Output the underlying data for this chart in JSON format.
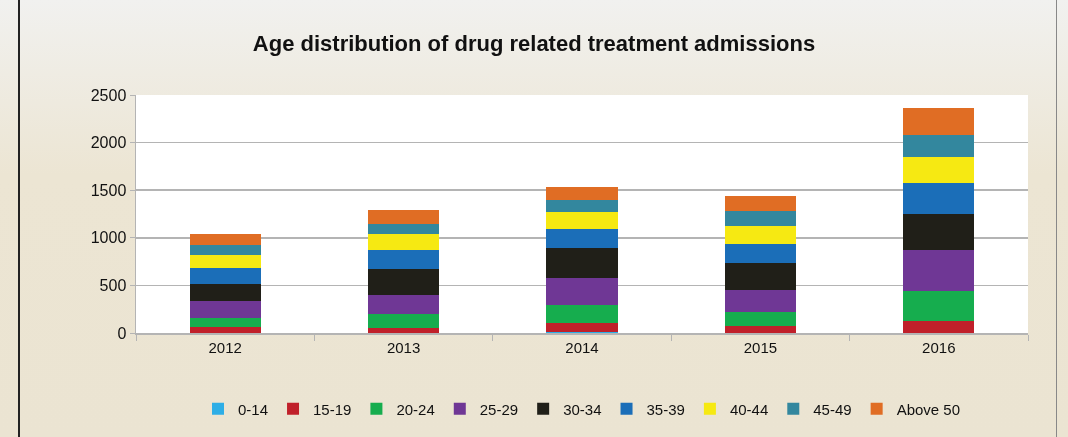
{
  "chart_data": {
    "type": "bar",
    "stacked": true,
    "title": "Age distribution of drug related treatment admissions",
    "categories": [
      "2012",
      "2013",
      "2014",
      "2015",
      "2016"
    ],
    "series": [
      {
        "name": "0-14",
        "color": "#2eaee6",
        "values": [
          0,
          0,
          10,
          0,
          0
        ]
      },
      {
        "name": "15-19",
        "color": "#c0202a",
        "values": [
          60,
          50,
          90,
          70,
          130
        ]
      },
      {
        "name": "20-24",
        "color": "#16ad4e",
        "values": [
          100,
          150,
          190,
          150,
          310
        ]
      },
      {
        "name": "25-29",
        "color": "#6f3795",
        "values": [
          180,
          200,
          290,
          230,
          430
        ]
      },
      {
        "name": "30-34",
        "color": "#201f18",
        "values": [
          180,
          270,
          310,
          290,
          380
        ]
      },
      {
        "name": "35-39",
        "color": "#1b6eb8",
        "values": [
          160,
          200,
          200,
          200,
          330
        ]
      },
      {
        "name": "40-44",
        "color": "#f6e912",
        "values": [
          140,
          170,
          180,
          180,
          270
        ]
      },
      {
        "name": "45-49",
        "color": "#33879e",
        "values": [
          100,
          110,
          130,
          160,
          230
        ]
      },
      {
        "name": "Above 50",
        "color": "#e06d24",
        "values": [
          120,
          140,
          130,
          160,
          280
        ]
      }
    ],
    "ylim": [
      0,
      2500
    ],
    "yticks": [
      0,
      500,
      1000,
      1500,
      2000,
      2500
    ],
    "grid": "y",
    "legend": "bottom"
  }
}
